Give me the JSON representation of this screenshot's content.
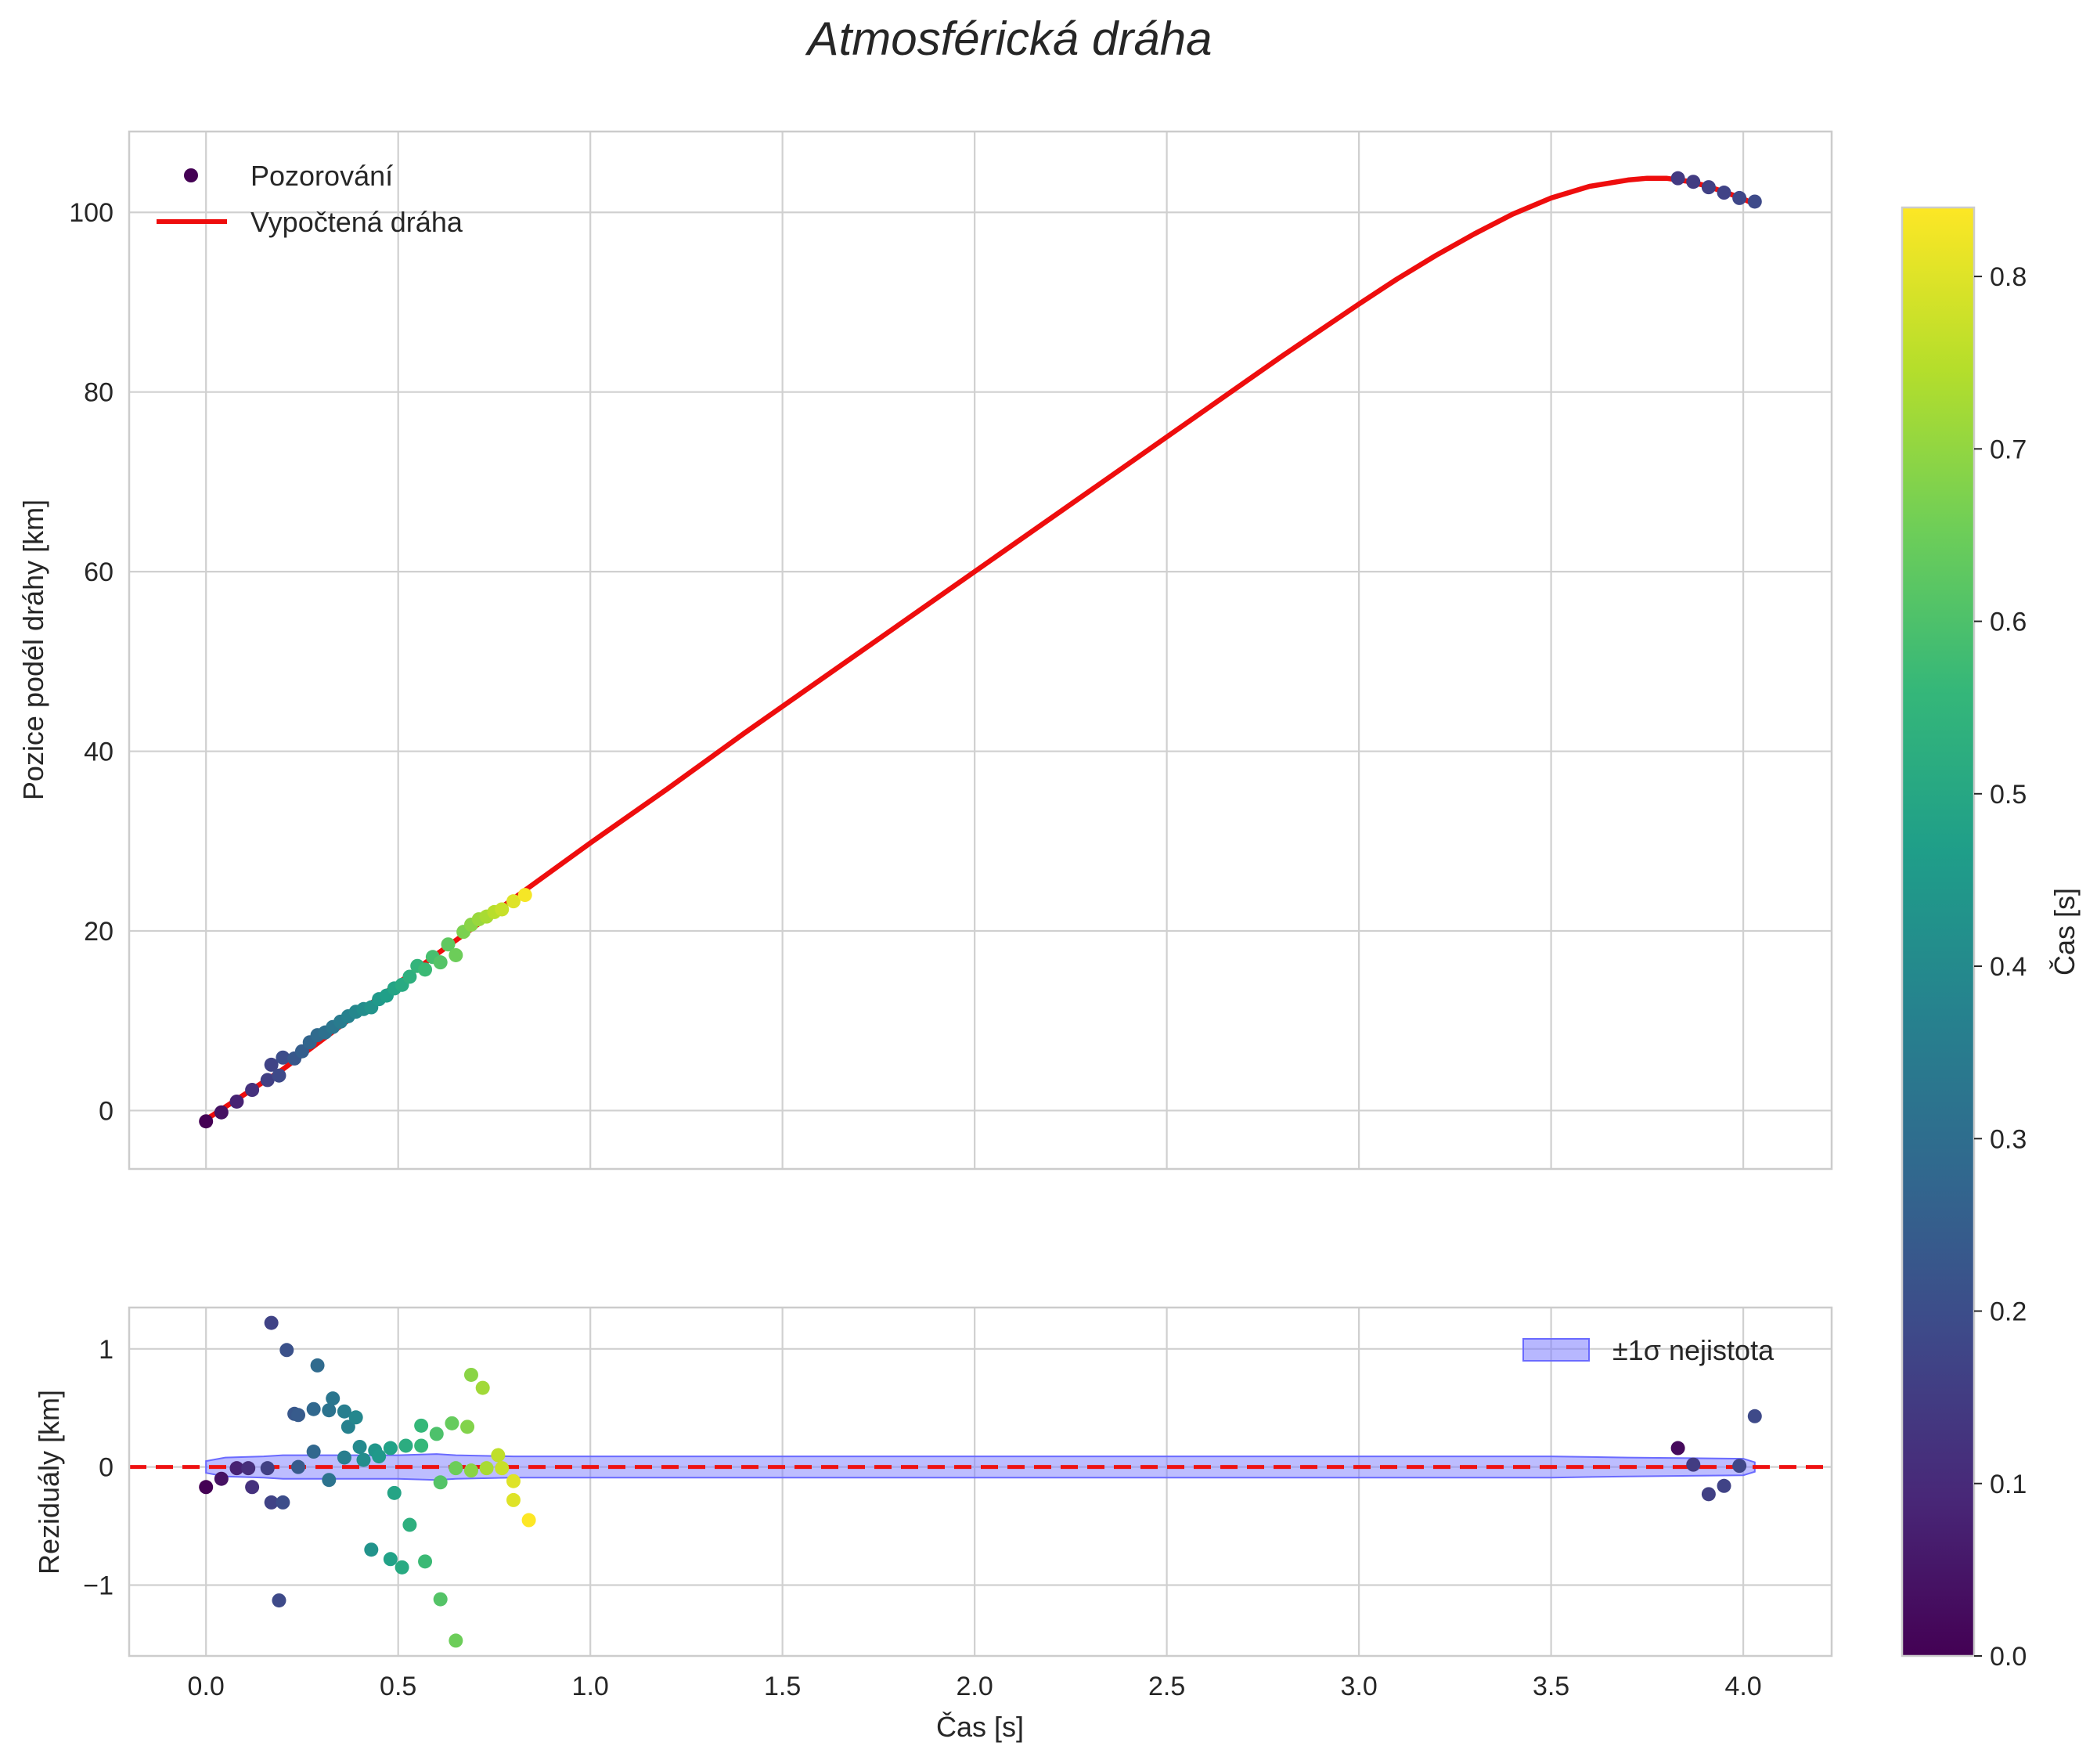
{
  "chart_data": [
    {
      "type": "scatter",
      "panel": "main",
      "title": "Atmosférická dráha",
      "xlabel": "",
      "ylabel": "Pozice podél dráhy [km]",
      "xlim": [
        -0.2,
        4.23
      ],
      "ylim": [
        -6.5,
        109
      ],
      "xticks": [
        0.0,
        0.5,
        1.0,
        1.5,
        2.0,
        2.5,
        3.0,
        3.5,
        4.0
      ],
      "yticks": [
        0,
        20,
        40,
        60,
        80,
        100
      ],
      "ytick_labels": [
        "0",
        "20",
        "40",
        "60",
        "80",
        "100"
      ],
      "grid": true,
      "legend_position": "top-left",
      "legend": [
        {
          "label": "Pozorování",
          "kind": "marker"
        },
        {
          "label": "Vypočtená dráha",
          "kind": "line",
          "color": "#ee0d0d"
        }
      ],
      "series": [
        {
          "name": "Pozorování",
          "kind": "scatter",
          "colormap": "viridis",
          "points": [
            [
              0.0,
              -1.2,
              0.0
            ],
            [
              0.04,
              -0.2,
              0.04
            ],
            [
              0.08,
              1.0,
              0.08
            ],
            [
              0.12,
              2.3,
              0.12
            ],
            [
              0.16,
              3.4,
              0.16
            ],
            [
              0.17,
              5.1,
              0.17
            ],
            [
              0.19,
              3.9,
              0.19
            ],
            [
              0.2,
              5.9,
              0.2
            ],
            [
              0.23,
              5.8,
              0.23
            ],
            [
              0.25,
              6.6,
              0.25
            ],
            [
              0.27,
              7.6,
              0.27
            ],
            [
              0.29,
              8.4,
              0.29
            ],
            [
              0.31,
              8.7,
              0.31
            ],
            [
              0.33,
              9.3,
              0.33
            ],
            [
              0.35,
              9.9,
              0.35
            ],
            [
              0.37,
              10.5,
              0.37
            ],
            [
              0.39,
              11.0,
              0.39
            ],
            [
              0.41,
              11.3,
              0.41
            ],
            [
              0.43,
              11.5,
              0.43
            ],
            [
              0.45,
              12.4,
              0.45
            ],
            [
              0.47,
              12.8,
              0.47
            ],
            [
              0.49,
              13.6,
              0.49
            ],
            [
              0.51,
              14.0,
              0.51
            ],
            [
              0.53,
              14.9,
              0.53
            ],
            [
              0.55,
              16.1,
              0.55
            ],
            [
              0.57,
              15.7,
              0.57
            ],
            [
              0.59,
              17.1,
              0.59
            ],
            [
              0.61,
              16.5,
              0.61
            ],
            [
              0.63,
              18.5,
              0.63
            ],
            [
              0.65,
              17.3,
              0.65
            ],
            [
              0.67,
              19.9,
              0.67
            ],
            [
              0.69,
              20.7,
              0.69
            ],
            [
              0.71,
              21.3,
              0.71
            ],
            [
              0.73,
              21.6,
              0.73
            ],
            [
              0.75,
              22.1,
              0.75
            ],
            [
              0.77,
              22.4,
              0.77
            ],
            [
              0.8,
              23.3,
              0.8
            ],
            [
              0.83,
              24.0,
              0.83
            ],
            [
              3.83,
              103.8,
              0.14
            ],
            [
              3.87,
              103.4,
              0.15
            ],
            [
              3.91,
              102.8,
              0.16
            ],
            [
              3.95,
              102.2,
              0.17
            ],
            [
              3.99,
              101.6,
              0.18
            ],
            [
              4.03,
              101.2,
              0.19
            ]
          ]
        },
        {
          "name": "Vypočtená dráha",
          "kind": "line",
          "color": "#ee0d0d",
          "x": [
            0.0,
            0.2,
            0.4,
            0.6,
            0.8,
            1.0,
            1.2,
            1.4,
            1.6,
            1.8,
            2.0,
            2.2,
            2.4,
            2.6,
            2.8,
            3.0,
            3.1,
            3.2,
            3.3,
            3.4,
            3.5,
            3.6,
            3.7,
            3.75,
            3.8,
            3.85,
            3.9,
            3.95,
            4.0,
            4.03
          ],
          "y": [
            -1.0,
            4.6,
            11.0,
            17.4,
            23.6,
            29.8,
            35.8,
            42.0,
            48.0,
            54.0,
            60.0,
            66.0,
            72.0,
            78.0,
            84.0,
            89.8,
            92.6,
            95.2,
            97.6,
            99.8,
            101.6,
            102.9,
            103.6,
            103.8,
            103.8,
            103.5,
            103.0,
            102.3,
            101.5,
            100.9
          ]
        }
      ]
    },
    {
      "type": "scatter",
      "panel": "residuals",
      "xlabel": "Čas [s]",
      "ylabel": "Reziduály [km]",
      "xlim": [
        -0.2,
        4.23
      ],
      "ylim": [
        -1.6,
        1.35
      ],
      "xticks": [
        0.0,
        0.5,
        1.0,
        1.5,
        2.0,
        2.5,
        3.0,
        3.5,
        4.0
      ],
      "xtick_labels": [
        "0.0",
        "0.5",
        "1.0",
        "1.5",
        "2.0",
        "2.5",
        "3.0",
        "3.5",
        "4.0"
      ],
      "yticks": [
        -1,
        0,
        1
      ],
      "ytick_labels": [
        "−1",
        "0",
        "1"
      ],
      "grid": true,
      "legend_position": "top-right",
      "legend": [
        {
          "label": "±1σ nejistota",
          "kind": "band",
          "color": "#7b7bff"
        }
      ],
      "reference_line": {
        "y": 0,
        "color": "#ee1111",
        "style": "dashed"
      },
      "band": {
        "x": [
          0.0,
          0.05,
          0.15,
          0.2,
          0.35,
          0.5,
          0.6,
          0.65,
          0.8,
          1.0,
          2.0,
          3.0,
          3.5,
          3.7,
          4.0,
          4.03
        ],
        "half_width": [
          0.05,
          0.08,
          0.09,
          0.1,
          0.1,
          0.1,
          0.11,
          0.1,
          0.09,
          0.09,
          0.09,
          0.09,
          0.09,
          0.08,
          0.07,
          0.04
        ]
      },
      "series": [
        {
          "name": "Reziduály",
          "kind": "scatter",
          "colormap": "viridis",
          "points": [
            [
              0.0,
              -0.17,
              0.0
            ],
            [
              0.04,
              -0.1,
              0.04
            ],
            [
              0.08,
              -0.01,
              0.08
            ],
            [
              0.11,
              -0.01,
              0.11
            ],
            [
              0.12,
              -0.17,
              0.12
            ],
            [
              0.16,
              -0.01,
              0.16
            ],
            [
              0.17,
              -0.3,
              0.17
            ],
            [
              0.17,
              1.22,
              0.17
            ],
            [
              0.19,
              -1.13,
              0.19
            ],
            [
              0.2,
              -0.3,
              0.2
            ],
            [
              0.21,
              0.99,
              0.21
            ],
            [
              0.23,
              0.45,
              0.23
            ],
            [
              0.24,
              0.44,
              0.24
            ],
            [
              0.24,
              0.0,
              0.24
            ],
            [
              0.28,
              0.49,
              0.28
            ],
            [
              0.28,
              0.13,
              0.28
            ],
            [
              0.29,
              0.86,
              0.29
            ],
            [
              0.32,
              0.48,
              0.32
            ],
            [
              0.32,
              -0.11,
              0.32
            ],
            [
              0.33,
              0.58,
              0.33
            ],
            [
              0.36,
              0.47,
              0.36
            ],
            [
              0.36,
              0.08,
              0.36
            ],
            [
              0.37,
              0.34,
              0.37
            ],
            [
              0.39,
              0.42,
              0.39
            ],
            [
              0.4,
              0.17,
              0.4
            ],
            [
              0.41,
              0.06,
              0.41
            ],
            [
              0.43,
              -0.7,
              0.43
            ],
            [
              0.44,
              0.14,
              0.44
            ],
            [
              0.45,
              0.09,
              0.45
            ],
            [
              0.48,
              -0.78,
              0.48
            ],
            [
              0.48,
              0.16,
              0.48
            ],
            [
              0.49,
              -0.22,
              0.49
            ],
            [
              0.51,
              -0.85,
              0.51
            ],
            [
              0.52,
              0.18,
              0.52
            ],
            [
              0.53,
              -0.49,
              0.53
            ],
            [
              0.56,
              0.35,
              0.56
            ],
            [
              0.56,
              0.18,
              0.56
            ],
            [
              0.57,
              -0.8,
              0.57
            ],
            [
              0.6,
              0.28,
              0.6
            ],
            [
              0.61,
              -0.13,
              0.61
            ],
            [
              0.61,
              -1.12,
              0.61
            ],
            [
              0.64,
              0.37,
              0.64
            ],
            [
              0.65,
              -0.01,
              0.65
            ],
            [
              0.65,
              -1.47,
              0.65
            ],
            [
              0.68,
              0.34,
              0.68
            ],
            [
              0.69,
              0.78,
              0.69
            ],
            [
              0.69,
              -0.03,
              0.69
            ],
            [
              0.72,
              0.67,
              0.72
            ],
            [
              0.73,
              -0.01,
              0.73
            ],
            [
              0.76,
              0.1,
              0.76
            ],
            [
              0.77,
              -0.01,
              0.77
            ],
            [
              0.8,
              -0.28,
              0.8
            ],
            [
              0.8,
              -0.12,
              0.8
            ],
            [
              0.84,
              -0.45,
              0.84
            ],
            [
              3.83,
              0.16,
              0.02
            ],
            [
              3.87,
              0.02,
              0.15
            ],
            [
              3.91,
              -0.23,
              0.16
            ],
            [
              3.95,
              -0.16,
              0.17
            ],
            [
              3.99,
              0.01,
              0.18
            ],
            [
              4.03,
              0.43,
              0.19
            ]
          ]
        }
      ]
    }
  ],
  "colorbar": {
    "label": "Čas [s]",
    "colormap": "viridis",
    "range": [
      0.0,
      0.84
    ],
    "ticks": [
      0.0,
      0.1,
      0.2,
      0.3,
      0.4,
      0.5,
      0.6,
      0.7,
      0.8
    ],
    "tick_labels": [
      "0.0",
      "0.1",
      "0.2",
      "0.3",
      "0.4",
      "0.5",
      "0.6",
      "0.7",
      "0.8"
    ],
    "stops": [
      "#440154",
      "#482878",
      "#3e4989",
      "#31688e",
      "#26828e",
      "#1f9e89",
      "#35b779",
      "#6ece58",
      "#b5de2b",
      "#fde725"
    ]
  }
}
